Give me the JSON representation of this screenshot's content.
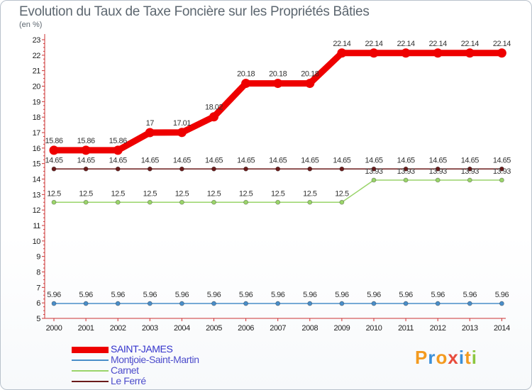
{
  "title": "Evolution du Taux de Taxe Foncière sur les Propriétés Bâties",
  "unit": "(en %)",
  "brand": {
    "letters": [
      "P",
      "r",
      "o",
      "x",
      "i",
      "t",
      "i"
    ],
    "colors": [
      "#f39a1f",
      "#3b8fd8",
      "#f39a1f",
      "#e84c3d",
      "#3b8fd8",
      "#f39a1f",
      "#8cc63f"
    ]
  },
  "chart_data": {
    "type": "line",
    "title": "Evolution du Taux de Taxe Foncière sur les Propriétés Bâties",
    "ylabel": "(en %)",
    "xlabel": "",
    "x": [
      "2000",
      "2001",
      "2002",
      "2003",
      "2004",
      "2005",
      "2006",
      "2007",
      "2008",
      "2009",
      "2010",
      "2011",
      "2012",
      "2013",
      "2014"
    ],
    "ylim": [
      5,
      23
    ],
    "yticks": [
      "5",
      "6",
      "7",
      "8",
      "9",
      "10",
      "11",
      "12",
      "13",
      "14",
      "15",
      "16",
      "17",
      "18",
      "19",
      "20",
      "21",
      "22",
      "23"
    ],
    "grid": false,
    "legend_position": "bottom-left",
    "series": [
      {
        "name": "SAINT-JAMES",
        "color": "#ee0000",
        "values": [
          15.86,
          15.86,
          15.86,
          17,
          17.01,
          18.02,
          20.18,
          20.18,
          20.18,
          22.14,
          22.14,
          22.14,
          22.14,
          22.14,
          22.14
        ],
        "labels": [
          "15.86",
          "15.86",
          "15.86",
          "17",
          "17.01",
          "18.02",
          "20.18",
          "20.18",
          "20.18",
          "22.14",
          "22.14",
          "22.14",
          "22.14",
          "22.14",
          "22.14"
        ]
      },
      {
        "name": "Montjoie-Saint-Martin",
        "color": "#4a8ec9",
        "values": [
          5.96,
          5.96,
          5.96,
          5.96,
          5.96,
          5.96,
          5.96,
          5.96,
          5.96,
          5.96,
          5.96,
          5.96,
          5.96,
          5.96,
          5.96
        ],
        "labels": [
          "5.96",
          "5.96",
          "5.96",
          "5.96",
          "5.96",
          "5.96",
          "5.96",
          "5.96",
          "5.96",
          "5.96",
          "5.96",
          "5.96",
          "5.96",
          "5.96",
          "5.96"
        ]
      },
      {
        "name": "Carnet",
        "color": "#9ad46a",
        "values": [
          12.5,
          12.5,
          12.5,
          12.5,
          12.5,
          12.5,
          12.5,
          12.5,
          12.5,
          12.5,
          13.93,
          13.93,
          13.93,
          13.93,
          13.93
        ],
        "labels": [
          "12.5",
          "12.5",
          "12.5",
          "12.5",
          "12.5",
          "12.5",
          "12.5",
          "12.5",
          "12.5",
          "12.5",
          "13.93",
          "13.93",
          "13.93",
          "13.93",
          "13.93"
        ]
      },
      {
        "name": "Le Ferré",
        "color": "#6b1b1b",
        "values": [
          14.65,
          14.65,
          14.65,
          14.65,
          14.65,
          14.65,
          14.65,
          14.65,
          14.65,
          14.65,
          14.65,
          14.65,
          14.65,
          14.65,
          14.65
        ],
        "labels": [
          "14.65",
          "14.65",
          "14.65",
          "14.65",
          "14.65",
          "14.65",
          "14.65",
          "14.65",
          "14.65",
          "14.65",
          "14.65",
          "14.65",
          "14.65",
          "14.65",
          "14.65"
        ]
      }
    ]
  }
}
